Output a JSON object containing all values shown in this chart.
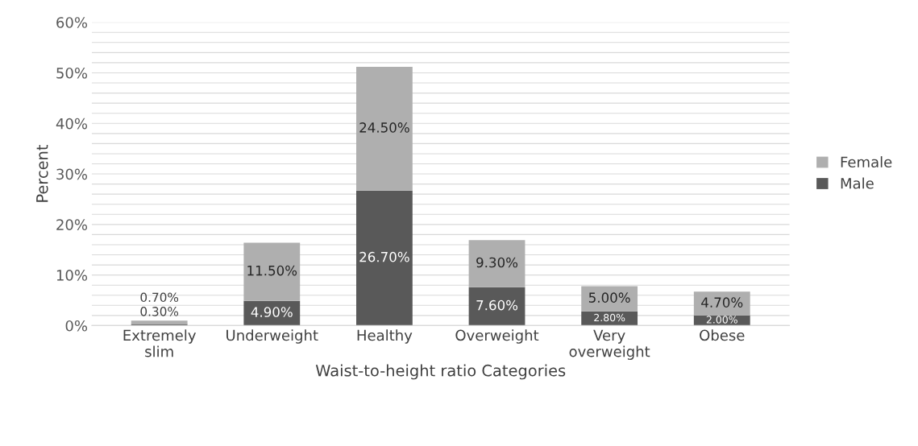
{
  "chart_data": {
    "type": "bar",
    "stacked": true,
    "xlabel": "Waist-to-height ratio Categories",
    "ylabel": "Percent",
    "categories": [
      "Extremely\nslim",
      "Underweight",
      "Healthy",
      "Overweight",
      "Very\noverweight",
      "Obese"
    ],
    "series": [
      {
        "name": "Male",
        "color": "#595959",
        "values": [
          0.3,
          4.9,
          26.7,
          7.6,
          2.8,
          2.0
        ],
        "value_labels": [
          "0.30%",
          "4.90%",
          "26.70%",
          "7.60%",
          "2.80%",
          "2.00%"
        ]
      },
      {
        "name": "Female",
        "color": "#afafaf",
        "values": [
          0.7,
          11.5,
          24.5,
          9.3,
          5.0,
          4.7
        ],
        "value_labels": [
          "0.70%",
          "11.50%",
          "24.50%",
          "9.30%",
          "5.00%",
          "4.70%"
        ]
      }
    ],
    "ylim": [
      0,
      60
    ],
    "yticks": [
      {
        "value": 0,
        "label": "0%"
      },
      {
        "value": 2,
        "label": null
      },
      {
        "value": 4,
        "label": null
      },
      {
        "value": 6,
        "label": null
      },
      {
        "value": 8,
        "label": null
      },
      {
        "value": 10,
        "label": "10%"
      },
      {
        "value": 12,
        "label": null
      },
      {
        "value": 14,
        "label": null
      },
      {
        "value": 16,
        "label": null
      },
      {
        "value": 18,
        "label": null
      },
      {
        "value": 20,
        "label": "20%"
      },
      {
        "value": 22,
        "label": null
      },
      {
        "value": 24,
        "label": null
      },
      {
        "value": 26,
        "label": null
      },
      {
        "value": 28,
        "label": null
      },
      {
        "value": 30,
        "label": "30%"
      },
      {
        "value": 32,
        "label": null
      },
      {
        "value": 34,
        "label": null
      },
      {
        "value": 36,
        "label": null
      },
      {
        "value": 38,
        "label": null
      },
      {
        "value": 40,
        "label": "40%"
      },
      {
        "value": 42,
        "label": null
      },
      {
        "value": 44,
        "label": null
      },
      {
        "value": 46,
        "label": null
      },
      {
        "value": 48,
        "label": null
      },
      {
        "value": 50,
        "label": "50%"
      },
      {
        "value": 52,
        "label": null
      },
      {
        "value": 54,
        "label": null
      },
      {
        "value": 56,
        "label": null
      },
      {
        "value": 58,
        "label": null
      },
      {
        "value": 60,
        "label": "60%"
      }
    ],
    "grid": "y",
    "legend": "right"
  }
}
